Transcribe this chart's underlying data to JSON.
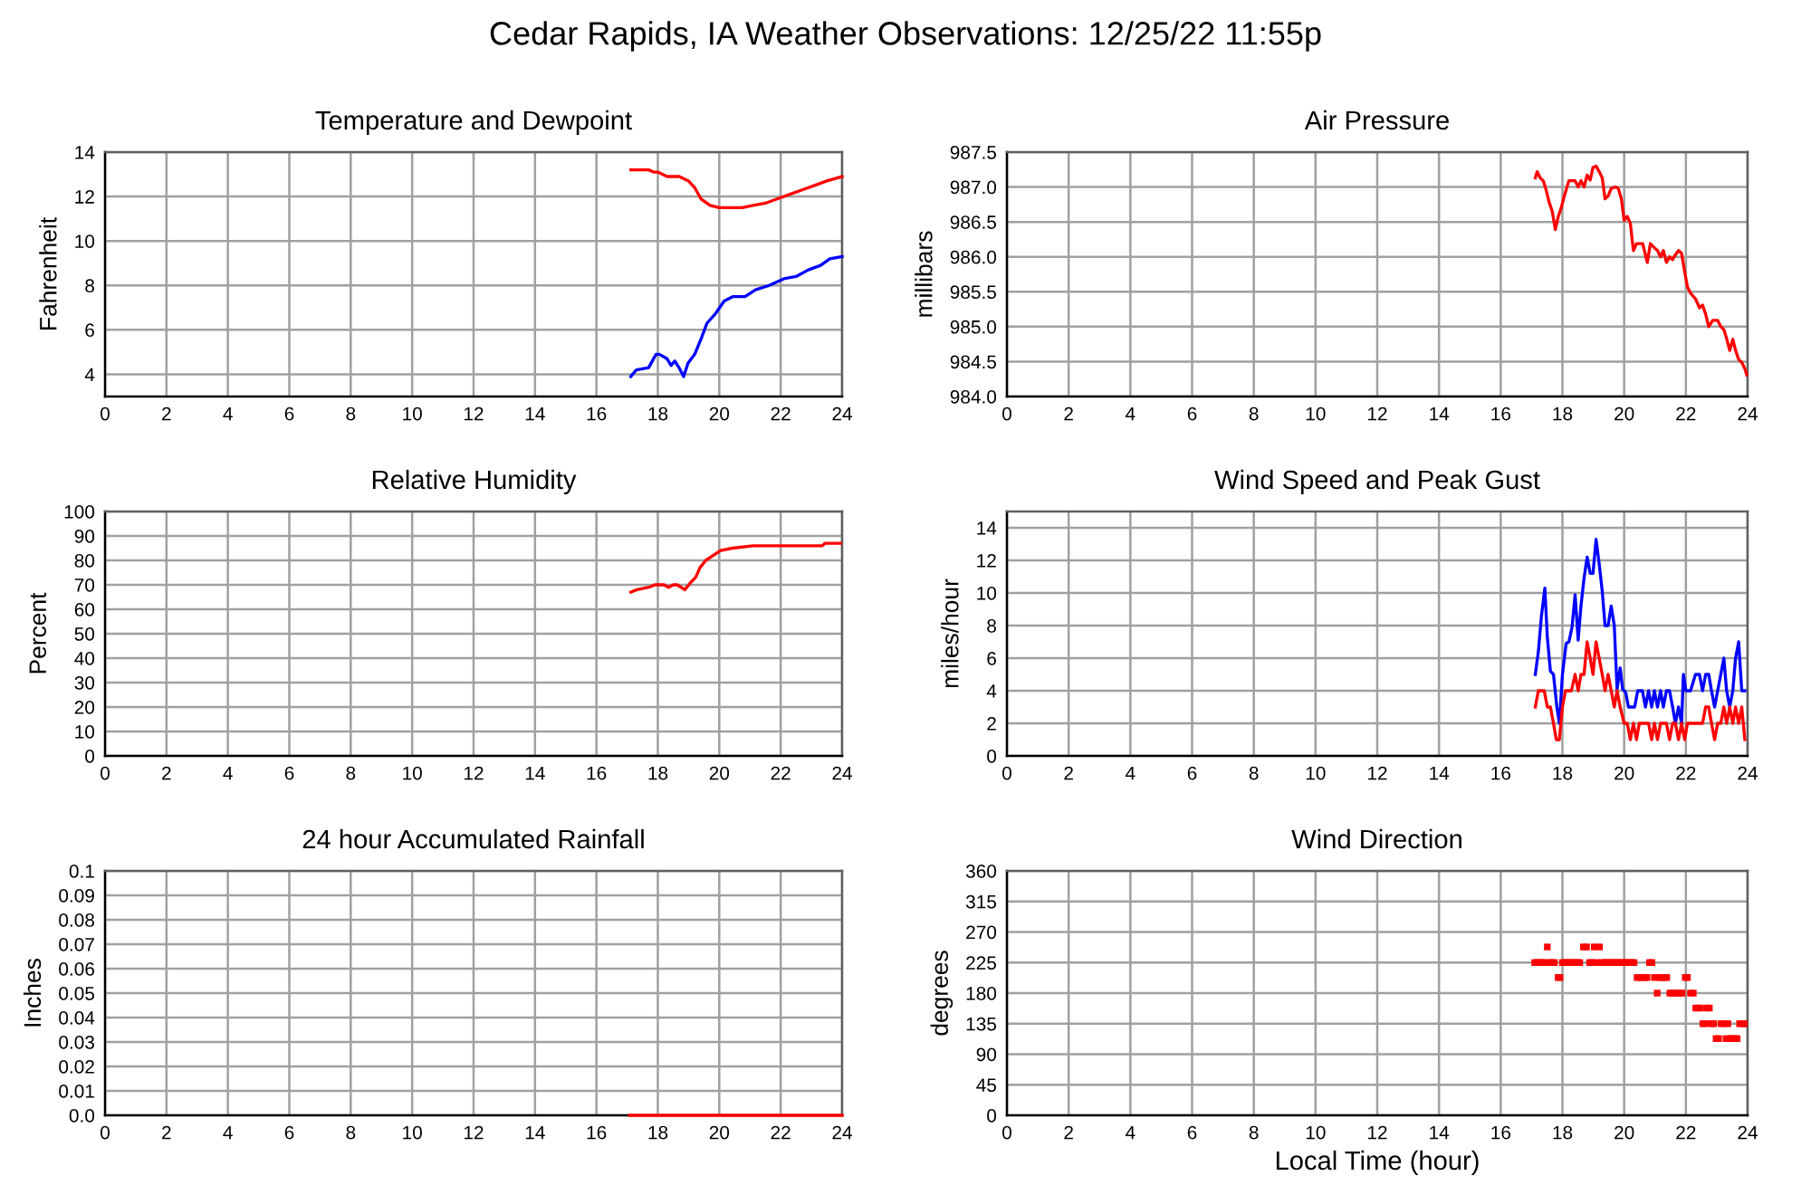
{
  "chart_data": [
    {
      "type": "line",
      "title": "Temperature and Dewpoint",
      "ylabel": "Fahrenheit",
      "annotations": [
        "Cedar Rapids, IA Weather Observations: 12/25/22 11:55p"
      ],
      "xlim": [
        0,
        24
      ],
      "xticks": [
        0,
        2,
        4,
        6,
        8,
        10,
        12,
        14,
        16,
        18,
        20,
        22,
        24
      ],
      "ylim": [
        3,
        14
      ],
      "yticks": [
        4,
        6,
        8,
        10,
        12,
        14
      ],
      "grid": true,
      "series": [
        {
          "color": "#ff0000",
          "x": [
            17.12,
            17.4,
            17.7,
            17.86,
            18.0,
            18.3,
            18.7,
            19.0,
            19.2,
            19.4,
            19.7,
            20.0,
            20.75,
            21.1,
            21.5,
            21.9,
            22.3,
            22.7,
            23.1,
            23.5,
            24.0
          ],
          "values": [
            13.2,
            13.2,
            13.2,
            13.1,
            13.1,
            12.9,
            12.9,
            12.7,
            12.4,
            11.9,
            11.6,
            11.5,
            11.5,
            11.6,
            11.7,
            11.9,
            12.1,
            12.3,
            12.5,
            12.7,
            12.9
          ]
        },
        {
          "color": "#0000ff",
          "x": [
            17.12,
            17.3,
            17.7,
            17.94,
            18.05,
            18.3,
            18.43,
            18.55,
            18.69,
            18.84,
            18.98,
            19.2,
            19.41,
            19.6,
            19.86,
            20.16,
            20.45,
            20.84,
            21.18,
            21.63,
            22.1,
            22.5,
            22.9,
            23.3,
            23.6,
            24.0
          ],
          "values": [
            3.9,
            4.2,
            4.3,
            4.9,
            4.9,
            4.7,
            4.4,
            4.6,
            4.3,
            3.9,
            4.5,
            4.9,
            5.6,
            6.3,
            6.7,
            7.3,
            7.5,
            7.5,
            7.8,
            8.0,
            8.3,
            8.4,
            8.7,
            8.9,
            9.2,
            9.3
          ]
        }
      ]
    },
    {
      "type": "line",
      "title": "Air Pressure",
      "ylabel": "millibars",
      "xlim": [
        0,
        24
      ],
      "xticks": [
        0,
        2,
        4,
        6,
        8,
        10,
        12,
        14,
        16,
        18,
        20,
        22,
        24
      ],
      "ylim": [
        984,
        987.5
      ],
      "yticks": [
        {
          "value": 984,
          "label": "984.0"
        },
        984.5,
        {
          "value": 985,
          "label": "985.0"
        },
        985.5,
        {
          "value": 986,
          "label": "986.0"
        },
        986.5,
        {
          "value": 987,
          "label": "987.0"
        },
        987.5
      ],
      "grid": true,
      "series": [
        {
          "color": "#ff0000",
          "x": [
            17.12,
            17.18,
            17.28,
            17.38,
            17.47,
            17.57,
            17.67,
            17.77,
            17.86,
            17.96,
            18.06,
            18.21,
            18.41,
            18.51,
            18.6,
            18.7,
            18.8,
            18.9,
            18.99,
            19.09,
            19.19,
            19.29,
            19.38,
            19.48,
            19.58,
            19.72,
            19.81,
            19.91,
            20.0,
            20.1,
            20.2,
            20.3,
            20.4,
            20.6,
            20.75,
            20.85,
            20.98,
            21.08,
            21.18,
            21.27,
            21.37,
            21.47,
            21.57,
            21.66,
            21.76,
            21.86,
            21.96,
            22.05,
            22.15,
            22.31,
            22.44,
            22.54,
            22.64,
            22.74,
            22.87,
            23.03,
            23.13,
            23.23,
            23.32,
            23.42,
            23.52,
            23.61,
            23.71,
            23.81,
            23.91,
            23.97
          ],
          "values": [
            987.13,
            987.22,
            987.13,
            987.09,
            986.96,
            986.78,
            986.65,
            986.39,
            986.57,
            986.7,
            986.87,
            987.09,
            987.09,
            987.0,
            987.09,
            987.0,
            987.17,
            987.1,
            987.28,
            987.3,
            987.22,
            987.13,
            986.83,
            986.87,
            986.98,
            987.0,
            986.98,
            986.83,
            986.52,
            986.58,
            986.48,
            986.09,
            986.19,
            986.19,
            985.92,
            986.19,
            986.13,
            986.09,
            986.0,
            986.09,
            985.92,
            986.0,
            985.96,
            986.03,
            986.09,
            986.05,
            985.79,
            985.57,
            985.48,
            985.4,
            985.27,
            985.31,
            985.18,
            985.0,
            985.09,
            985.09,
            985.0,
            984.96,
            984.83,
            984.66,
            984.82,
            984.66,
            984.53,
            984.49,
            984.4,
            984.31
          ]
        }
      ]
    },
    {
      "type": "line",
      "title": "Relative Humidity",
      "ylabel": "Percent",
      "xlim": [
        0,
        24
      ],
      "xticks": [
        0,
        2,
        4,
        6,
        8,
        10,
        12,
        14,
        16,
        18,
        20,
        22,
        24
      ],
      "ylim": [
        0,
        100
      ],
      "yticks": [
        0,
        10,
        20,
        30,
        40,
        50,
        60,
        70,
        80,
        90,
        100
      ],
      "grid": true,
      "series": [
        {
          "color": "#ff0000",
          "x": [
            17.12,
            17.32,
            17.71,
            17.9,
            18.2,
            18.35,
            18.5,
            18.63,
            18.88,
            19.07,
            19.23,
            19.37,
            19.56,
            19.8,
            20.04,
            20.43,
            21.1,
            23.35,
            23.45,
            23.95
          ],
          "values": [
            67,
            68,
            69,
            70,
            70,
            69,
            70,
            70,
            68,
            71,
            73,
            77,
            80,
            82,
            84,
            85,
            86,
            86,
            87,
            87
          ]
        }
      ]
    },
    {
      "type": "line",
      "title": "Wind Speed and Peak Gust",
      "ylabel": "miles/hour",
      "xlim": [
        0,
        24
      ],
      "xticks": [
        0,
        2,
        4,
        6,
        8,
        10,
        12,
        14,
        16,
        18,
        20,
        22,
        24
      ],
      "ylim": [
        0,
        15
      ],
      "yticks": [
        0,
        2,
        4,
        6,
        8,
        10,
        12,
        14
      ],
      "grid": true,
      "series": [
        {
          "color": "#0000ff",
          "x": [
            17.12,
            17.22,
            17.32,
            17.43,
            17.51,
            17.61,
            17.71,
            17.82,
            17.9,
            18.0,
            18.12,
            18.21,
            18.31,
            18.41,
            18.51,
            18.6,
            18.7,
            18.8,
            18.9,
            18.99,
            19.09,
            19.19,
            19.29,
            19.38,
            19.48,
            19.58,
            19.68,
            19.77,
            19.87,
            19.95,
            20.05,
            20.14,
            20.24,
            20.34,
            20.44,
            20.59,
            20.69,
            20.79,
            20.89,
            20.98,
            21.08,
            21.18,
            21.27,
            21.37,
            21.47,
            21.57,
            21.66,
            21.76,
            21.86,
            21.92,
            22.0,
            22.15,
            22.31,
            22.44,
            22.54,
            22.64,
            22.74,
            22.83,
            22.93,
            23.03,
            23.13,
            23.23,
            23.32,
            23.42,
            23.52,
            23.61,
            23.71,
            23.81,
            23.91
          ],
          "values": [
            5,
            6.4,
            8.6,
            10.3,
            7.3,
            5.2,
            5,
            3,
            2,
            5,
            6.9,
            7,
            7.9,
            9.9,
            7.1,
            9.2,
            10.9,
            12.2,
            11.2,
            11.2,
            13.3,
            11.8,
            10.1,
            8,
            8,
            9.2,
            8,
            4.1,
            5.4,
            4.1,
            3.9,
            3,
            3,
            3,
            4,
            4,
            3,
            4,
            3,
            4,
            3,
            4,
            3,
            4,
            4,
            3,
            2,
            3,
            2,
            5,
            4,
            4,
            5,
            5,
            4,
            5,
            5,
            4,
            3,
            4,
            5,
            6,
            4,
            3,
            4,
            6,
            7,
            4,
            4
          ]
        },
        {
          "color": "#ff0000",
          "x": [
            17.12,
            17.22,
            17.41,
            17.51,
            17.61,
            17.71,
            17.8,
            17.9,
            18.0,
            18.1,
            18.29,
            18.41,
            18.51,
            18.6,
            18.7,
            18.8,
            18.9,
            18.99,
            19.09,
            19.19,
            19.29,
            19.38,
            19.48,
            19.58,
            19.68,
            19.77,
            19.87,
            20.0,
            20.1,
            20.2,
            20.3,
            20.4,
            20.49,
            20.79,
            20.89,
            20.98,
            21.08,
            21.18,
            21.37,
            21.47,
            21.57,
            21.66,
            21.76,
            21.86,
            21.96,
            22.05,
            22.54,
            22.64,
            22.74,
            22.83,
            22.93,
            23.03,
            23.13,
            23.23,
            23.32,
            23.42,
            23.52,
            23.61,
            23.71,
            23.81,
            23.91
          ],
          "values": [
            3,
            4,
            4,
            3,
            3,
            2,
            1,
            1,
            3,
            4,
            4,
            5,
            4,
            5,
            5,
            7,
            6,
            5,
            7,
            6,
            5,
            4,
            5,
            4,
            3,
            4,
            3,
            2,
            2,
            1,
            2,
            1,
            2,
            2,
            1,
            2,
            1,
            2,
            2,
            1,
            2,
            2,
            1,
            2,
            1,
            2,
            2,
            3,
            3,
            2,
            1,
            2,
            2,
            3,
            2,
            3,
            2,
            3,
            2,
            3,
            1
          ]
        }
      ]
    },
    {
      "type": "line",
      "title": "24 hour Accumulated Rainfall",
      "ylabel": "Inches",
      "xlim": [
        0,
        24
      ],
      "xticks": [
        0,
        2,
        4,
        6,
        8,
        10,
        12,
        14,
        16,
        18,
        20,
        22,
        24
      ],
      "ylim": [
        0,
        0.1
      ],
      "yticks": [
        {
          "value": 0,
          "label": "0.0"
        },
        0.01,
        0.02,
        0.03,
        0.04,
        0.05,
        0.06,
        0.07,
        0.08,
        0.09,
        0.1
      ],
      "grid": true,
      "series": [
        {
          "color": "#ff0000",
          "x": [
            17.08,
            24.0
          ],
          "values": [
            0,
            0
          ]
        }
      ]
    },
    {
      "type": "scatter",
      "title": "Wind Direction",
      "ylabel": "degrees",
      "xlabel": "Local Time (hour)",
      "marker": "square",
      "xlim": [
        0,
        24
      ],
      "xticks": [
        0,
        2,
        4,
        6,
        8,
        10,
        12,
        14,
        16,
        18,
        20,
        22,
        24
      ],
      "ylim": [
        0,
        360
      ],
      "yticks": [
        0,
        45,
        90,
        135,
        180,
        225,
        270,
        315,
        360
      ],
      "grid": true,
      "series": [
        {
          "color": "#ff0000",
          "x": [
            17.1,
            17.18,
            17.26,
            17.34,
            17.42,
            17.51,
            17.58,
            17.66,
            17.74,
            17.86,
            17.92,
            18.0,
            18.08,
            18.16,
            18.24,
            18.32,
            18.4,
            18.48,
            18.56,
            18.68,
            18.78,
            18.88,
            18.96,
            19.03,
            19.1,
            19.2,
            19.28,
            19.36,
            19.44,
            19.52,
            19.6,
            19.68,
            19.76,
            19.84,
            19.92,
            20.0,
            20.08,
            20.16,
            20.24,
            20.32,
            20.42,
            20.5,
            20.58,
            20.66,
            20.74,
            20.82,
            20.9,
            20.98,
            21.07,
            21.14,
            21.22,
            21.3,
            21.38,
            21.48,
            21.56,
            21.64,
            21.72,
            21.8,
            21.88,
            21.98,
            22.05,
            22.15,
            22.24,
            22.32,
            22.4,
            22.48,
            22.55,
            22.62,
            22.7,
            22.76,
            22.82,
            22.9,
            22.98,
            23.06,
            23.14,
            23.22,
            23.3,
            23.36,
            23.44,
            23.5,
            23.58,
            23.66,
            23.74,
            23.82,
            23.9,
            23.96
          ],
          "values": [
            225,
            225,
            225,
            225,
            225,
            248,
            225,
            225,
            225,
            203,
            203,
            225,
            225,
            225,
            225,
            225,
            225,
            225,
            225,
            248,
            248,
            225,
            225,
            248,
            225,
            248,
            225,
            225,
            225,
            225,
            225,
            225,
            225,
            225,
            225,
            225,
            225,
            225,
            225,
            225,
            203,
            203,
            203,
            203,
            203,
            225,
            225,
            203,
            180,
            203,
            203,
            203,
            203,
            180,
            180,
            180,
            180,
            180,
            180,
            203,
            203,
            180,
            180,
            158,
            158,
            158,
            135,
            135,
            158,
            158,
            135,
            135,
            113,
            113,
            135,
            135,
            113,
            135,
            113,
            113,
            113,
            113,
            135,
            135,
            135,
            135
          ]
        }
      ]
    }
  ]
}
